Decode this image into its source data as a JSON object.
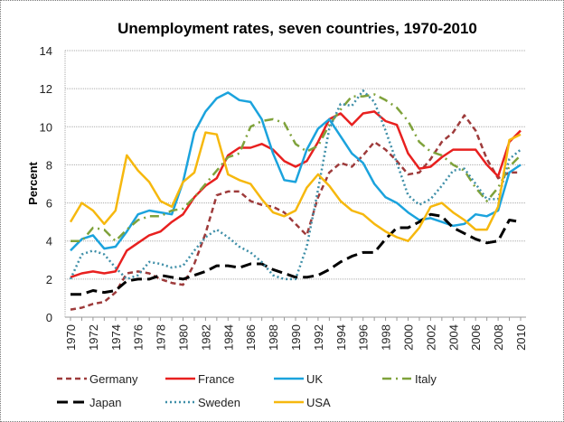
{
  "chart_data": {
    "type": "line",
    "title": "Unemployment rates, seven countries, 1970-2010",
    "xlabel": "",
    "ylabel": "Percent",
    "ylim": [
      0,
      14
    ],
    "yticks": [
      "0",
      "2",
      "4",
      "6",
      "8",
      "10",
      "12",
      "14"
    ],
    "xlim": [
      1970,
      2010
    ],
    "xtick_labels": [
      "1970",
      "1972",
      "1974",
      "1976",
      "1978",
      "1980",
      "1982",
      "1984",
      "1986",
      "1988",
      "1990",
      "1992",
      "1994",
      "1996",
      "1998",
      "2000",
      "2002",
      "2004",
      "2006",
      "2008",
      "2010"
    ],
    "grid": true,
    "legend_position": "bottom",
    "x": [
      1970,
      1971,
      1972,
      1973,
      1974,
      1975,
      1976,
      1977,
      1978,
      1979,
      1980,
      1981,
      1982,
      1983,
      1984,
      1985,
      1986,
      1987,
      1988,
      1989,
      1990,
      1991,
      1992,
      1993,
      1994,
      1995,
      1996,
      1997,
      1998,
      1999,
      2000,
      2001,
      2002,
      2003,
      2004,
      2005,
      2006,
      2007,
      2008,
      2009,
      2010
    ],
    "series": [
      {
        "name": "Germany",
        "color": "#9E3B3B",
        "style": "dash",
        "values": [
          0.4,
          0.5,
          0.7,
          0.8,
          1.3,
          2.3,
          2.4,
          2.3,
          2.0,
          1.8,
          1.7,
          2.8,
          4.4,
          6.4,
          6.6,
          6.6,
          6.1,
          5.9,
          5.8,
          5.5,
          4.9,
          4.3,
          6.3,
          7.6,
          8.1,
          7.9,
          8.5,
          9.2,
          8.8,
          8.2,
          7.5,
          7.6,
          8.3,
          9.2,
          9.7,
          10.6,
          9.8,
          8.3,
          7.3,
          7.6,
          7.6
        ]
      },
      {
        "name": "France",
        "color": "#E8201F",
        "style": "solid",
        "values": [
          2.1,
          2.3,
          2.4,
          2.3,
          2.4,
          3.5,
          3.9,
          4.3,
          4.5,
          5.0,
          5.4,
          6.3,
          6.9,
          7.3,
          8.5,
          8.9,
          8.9,
          9.1,
          8.8,
          8.2,
          7.9,
          8.2,
          9.2,
          10.4,
          10.7,
          10.1,
          10.7,
          10.8,
          10.3,
          10.1,
          8.6,
          7.8,
          7.9,
          8.4,
          8.8,
          8.8,
          8.8,
          8.0,
          7.4,
          9.2,
          9.8
        ]
      },
      {
        "name": "UK",
        "color": "#1BA3DD",
        "style": "solid",
        "values": [
          3.5,
          4.1,
          4.3,
          3.6,
          3.7,
          4.5,
          5.4,
          5.6,
          5.5,
          5.4,
          7.1,
          9.7,
          10.8,
          11.5,
          11.8,
          11.4,
          11.3,
          10.4,
          8.6,
          7.2,
          7.1,
          8.8,
          9.9,
          10.4,
          9.5,
          8.6,
          8.1,
          7.0,
          6.3,
          6.0,
          5.5,
          5.1,
          5.2,
          5.0,
          4.8,
          4.9,
          5.4,
          5.3,
          5.6,
          7.6,
          8.0
        ]
      },
      {
        "name": "Italy",
        "color": "#7FA23B",
        "style": "dashdot",
        "values": [
          4.0,
          4.0,
          4.7,
          4.6,
          4.0,
          4.6,
          5.1,
          5.3,
          5.3,
          5.6,
          5.7,
          6.3,
          7.0,
          7.7,
          8.4,
          8.6,
          10.0,
          10.3,
          10.4,
          10.2,
          9.1,
          8.7,
          9.0,
          10.1,
          10.9,
          11.6,
          11.6,
          11.7,
          11.4,
          11.0,
          10.3,
          9.2,
          8.7,
          8.5,
          8.0,
          7.7,
          6.8,
          6.1,
          6.8,
          7.9,
          8.5
        ]
      },
      {
        "name": "Japan",
        "color": "#000000",
        "style": "longdash",
        "values": [
          1.2,
          1.2,
          1.4,
          1.3,
          1.4,
          1.9,
          2.0,
          2.0,
          2.2,
          2.1,
          2.0,
          2.2,
          2.4,
          2.7,
          2.7,
          2.6,
          2.8,
          2.8,
          2.5,
          2.3,
          2.1,
          2.1,
          2.2,
          2.5,
          2.9,
          3.2,
          3.4,
          3.4,
          4.1,
          4.7,
          4.7,
          5.0,
          5.4,
          5.3,
          4.7,
          4.4,
          4.1,
          3.9,
          4.0,
          5.1,
          5.0
        ]
      },
      {
        "name": "Sweden",
        "color": "#3F8FA8",
        "style": "dot",
        "values": [
          2.0,
          3.3,
          3.5,
          3.3,
          2.6,
          2.0,
          2.2,
          2.9,
          2.8,
          2.6,
          2.7,
          3.5,
          4.2,
          4.6,
          4.2,
          3.7,
          3.4,
          2.9,
          2.2,
          2.0,
          2.0,
          3.7,
          6.7,
          9.9,
          11.2,
          11.1,
          11.9,
          11.3,
          9.8,
          8.1,
          6.4,
          5.9,
          6.2,
          6.9,
          7.7,
          7.8,
          7.0,
          6.2,
          6.2,
          8.3,
          8.8
        ]
      },
      {
        "name": "USA",
        "color": "#F6B80E",
        "style": "solid",
        "values": [
          5.0,
          6.0,
          5.6,
          4.9,
          5.6,
          8.5,
          7.7,
          7.1,
          6.1,
          5.8,
          7.1,
          7.6,
          9.7,
          9.6,
          7.5,
          7.2,
          7.0,
          6.2,
          5.5,
          5.3,
          5.6,
          6.8,
          7.5,
          6.9,
          6.1,
          5.6,
          5.4,
          4.9,
          4.5,
          4.2,
          4.0,
          4.7,
          5.8,
          6.0,
          5.5,
          5.1,
          4.6,
          4.6,
          5.8,
          9.3,
          9.6
        ]
      }
    ]
  }
}
